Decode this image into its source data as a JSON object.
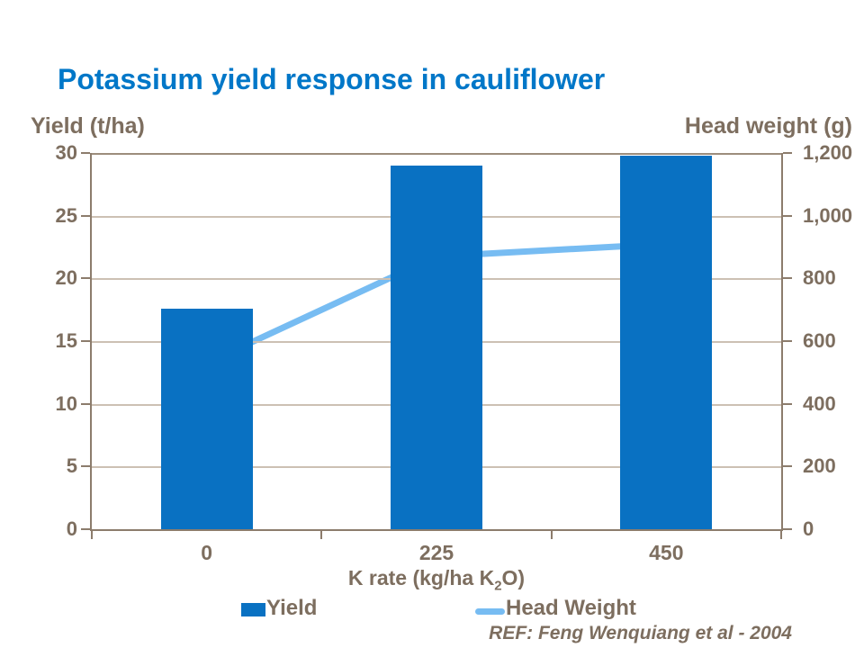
{
  "title": "Potassium yield response in cauliflower",
  "colors": {
    "title": "#0077C8",
    "bar": "#0971C2",
    "line": "#77BCF2",
    "text": "#7D6E5F",
    "gridline": "#CCC0B3",
    "axis": "#8C7C6C"
  },
  "chart_data": {
    "type": "bar",
    "subtype": "combo-bar-line-dual-axis",
    "categories": [
      "0",
      "225",
      "450"
    ],
    "series": [
      {
        "name": "Yield",
        "type": "bar",
        "axis": "left",
        "values": [
          17.6,
          29.0,
          29.8
        ]
      },
      {
        "name": "Head Weight",
        "type": "line",
        "axis": "right",
        "values": [
          530,
          870,
          910
        ]
      }
    ],
    "left_axis": {
      "label": "Yield (t/ha)",
      "min": 0,
      "max": 30,
      "ticks": [
        "30",
        "25",
        "20",
        "15",
        "10",
        "5",
        "0"
      ]
    },
    "right_axis": {
      "label": "Head weight (g)",
      "min": 0,
      "max": 1200,
      "ticks": [
        "1,200",
        "1,000",
        "800",
        "600",
        "400",
        "200",
        "0"
      ]
    },
    "x_axis": {
      "title_prefix": "K rate (kg/ha K",
      "title_sub": "2",
      "title_suffix": "O)",
      "tick_labels": [
        "0",
        "225",
        "450"
      ]
    },
    "legend": [
      {
        "label": "Yield",
        "swatch": "bar"
      },
      {
        "label": "Head Weight",
        "swatch": "line"
      }
    ],
    "grid": "horizontal",
    "legend_position": "bottom",
    "reference": "REF: Feng Wenquiang et al - 2004"
  }
}
